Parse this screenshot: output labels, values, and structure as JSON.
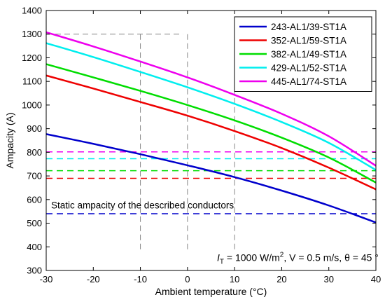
{
  "chart_data": {
    "type": "line",
    "xlabel": "Ambient temperature (°C)",
    "ylabel": "Ampacity (A)",
    "xlim": [
      -30,
      40
    ],
    "ylim": [
      300,
      1400
    ],
    "xticks": [
      -30,
      -20,
      -10,
      0,
      10,
      20,
      30,
      40
    ],
    "yticks": [
      300,
      400,
      500,
      600,
      700,
      800,
      900,
      1000,
      1100,
      1200,
      1300,
      1400
    ],
    "legend_position": "top-right",
    "annotation_static": "Static ampacity of the described conductors",
    "conditions": {
      "prefix": "I",
      "sub": "T",
      "mid": " = 1000 W/m",
      "sup": "2",
      "rest": ", V = 0.5 m/s, θ = 45 °"
    },
    "series": [
      {
        "name": "243-AL1/39-ST1A",
        "color": "#0000cc",
        "x": [
          -30,
          -20,
          -10,
          0,
          10,
          20,
          30,
          40
        ],
        "y": [
          877,
          836,
          792,
          745,
          695,
          638,
          575,
          503
        ],
        "static": 540
      },
      {
        "name": "352-AL1/59-ST1A",
        "color": "#ee0000",
        "x": [
          -30,
          -20,
          -10,
          0,
          10,
          20,
          30,
          40
        ],
        "y": [
          1125,
          1070,
          1013,
          955,
          890,
          818,
          735,
          643
        ],
        "static": 690
      },
      {
        "name": "382-AL1/49-ST1A",
        "color": "#00dd00",
        "x": [
          -30,
          -20,
          -10,
          0,
          10,
          20,
          30,
          40
        ],
        "y": [
          1173,
          1117,
          1060,
          1000,
          935,
          862,
          778,
          672
        ],
        "static": 722
      },
      {
        "name": "429-AL1/52-ST1A",
        "color": "#00eeee",
        "x": [
          -30,
          -20,
          -10,
          0,
          10,
          20,
          30,
          40
        ],
        "y": [
          1262,
          1203,
          1140,
          1075,
          1005,
          928,
          840,
          725
        ],
        "static": 773
      },
      {
        "name": "445-AL1/74-ST1A",
        "color": "#ee00ee",
        "x": [
          -30,
          -20,
          -10,
          0,
          10,
          20,
          30,
          40
        ],
        "y": [
          1308,
          1248,
          1184,
          1117,
          1043,
          963,
          868,
          743
        ],
        "static": 802
      }
    ],
    "reference_vlines": [
      -10,
      0,
      10
    ],
    "reference_hline": 1300
  }
}
